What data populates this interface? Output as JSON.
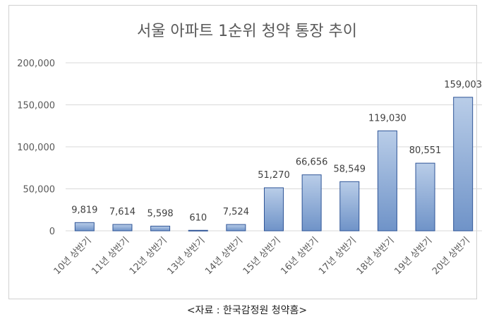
{
  "chart_data": {
    "type": "bar",
    "title": "서울 아파트 1순위 청약 통장 추이",
    "categories": [
      "10년 상반기",
      "11년 상반기",
      "12년 상반기",
      "13년 상반기",
      "14년 상반기",
      "15년 상반기",
      "16년 상반기",
      "17년 상반기",
      "18년 상반기",
      "19년 상반기",
      "20년 상반기"
    ],
    "values": [
      9819,
      7614,
      5598,
      610,
      7524,
      51270,
      66656,
      58549,
      119030,
      80551,
      159003
    ],
    "data_labels": [
      "9,819",
      "7,614",
      "5,598",
      "610",
      "7,524",
      "51,270",
      "66,656",
      "58,549",
      "119,030",
      "80,551",
      "159,003"
    ],
    "y_ticks": [
      "0",
      "50,000",
      "100,000",
      "150,000",
      "200,000"
    ],
    "ylim": [
      0,
      200000
    ],
    "xlabel": "",
    "ylabel": "",
    "grid": true,
    "legend": "none",
    "colors": {
      "bar_top": "#b9cde8",
      "bar_bottom": "#6f93c8",
      "bar_stroke": "#2f5597",
      "grid": "#d9d9d9"
    }
  },
  "source_note": "<자료 : 한국감정원 청약홈>"
}
